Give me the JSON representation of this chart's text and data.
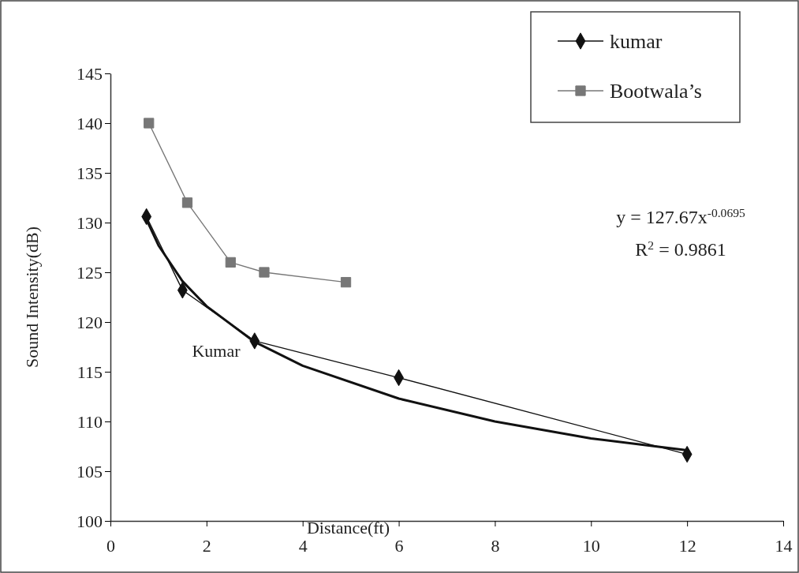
{
  "chart_data": {
    "type": "line",
    "xlabel": "Distance(ft)",
    "ylabel": "Sound Intensity(dB)",
    "xlim": [
      0,
      14
    ],
    "xticks": [
      0,
      2,
      4,
      6,
      8,
      10,
      12,
      14
    ],
    "ylim": [
      100,
      145
    ],
    "yticks": [
      100,
      105,
      110,
      115,
      120,
      125,
      130,
      135,
      140,
      145
    ],
    "grid": false,
    "legend": "top right",
    "line_style": "solid",
    "series": [
      {
        "name": "kumar",
        "color": "#111111",
        "marker": "diamond",
        "x": [
          0.75,
          1.5,
          3,
          6,
          12
        ],
        "values": [
          130.6,
          123.2,
          118.1,
          114.4,
          106.7
        ]
      },
      {
        "name": "Bootwala’s",
        "color": "#777777",
        "marker": "square",
        "x": [
          0.8,
          1.6,
          2.5,
          3.2,
          4.9
        ],
        "values": [
          140,
          132,
          126,
          125,
          124
        ]
      },
      {
        "type": "line",
        "color": "#111111",
        "marker": "none",
        "x": [
          0.75,
          1,
          1.5,
          2,
          3,
          4,
          6,
          8,
          10,
          12
        ],
        "values": [
          130.3,
          127.7,
          124.1,
          121.6,
          118,
          115.6,
          112.3,
          110,
          108.3,
          107.1
        ]
      }
    ],
    "annotations": [
      "Kumar",
      "y = 127.67x$^{-0.0695}$",
      "R$^{2}$ = 0.9861"
    ]
  }
}
